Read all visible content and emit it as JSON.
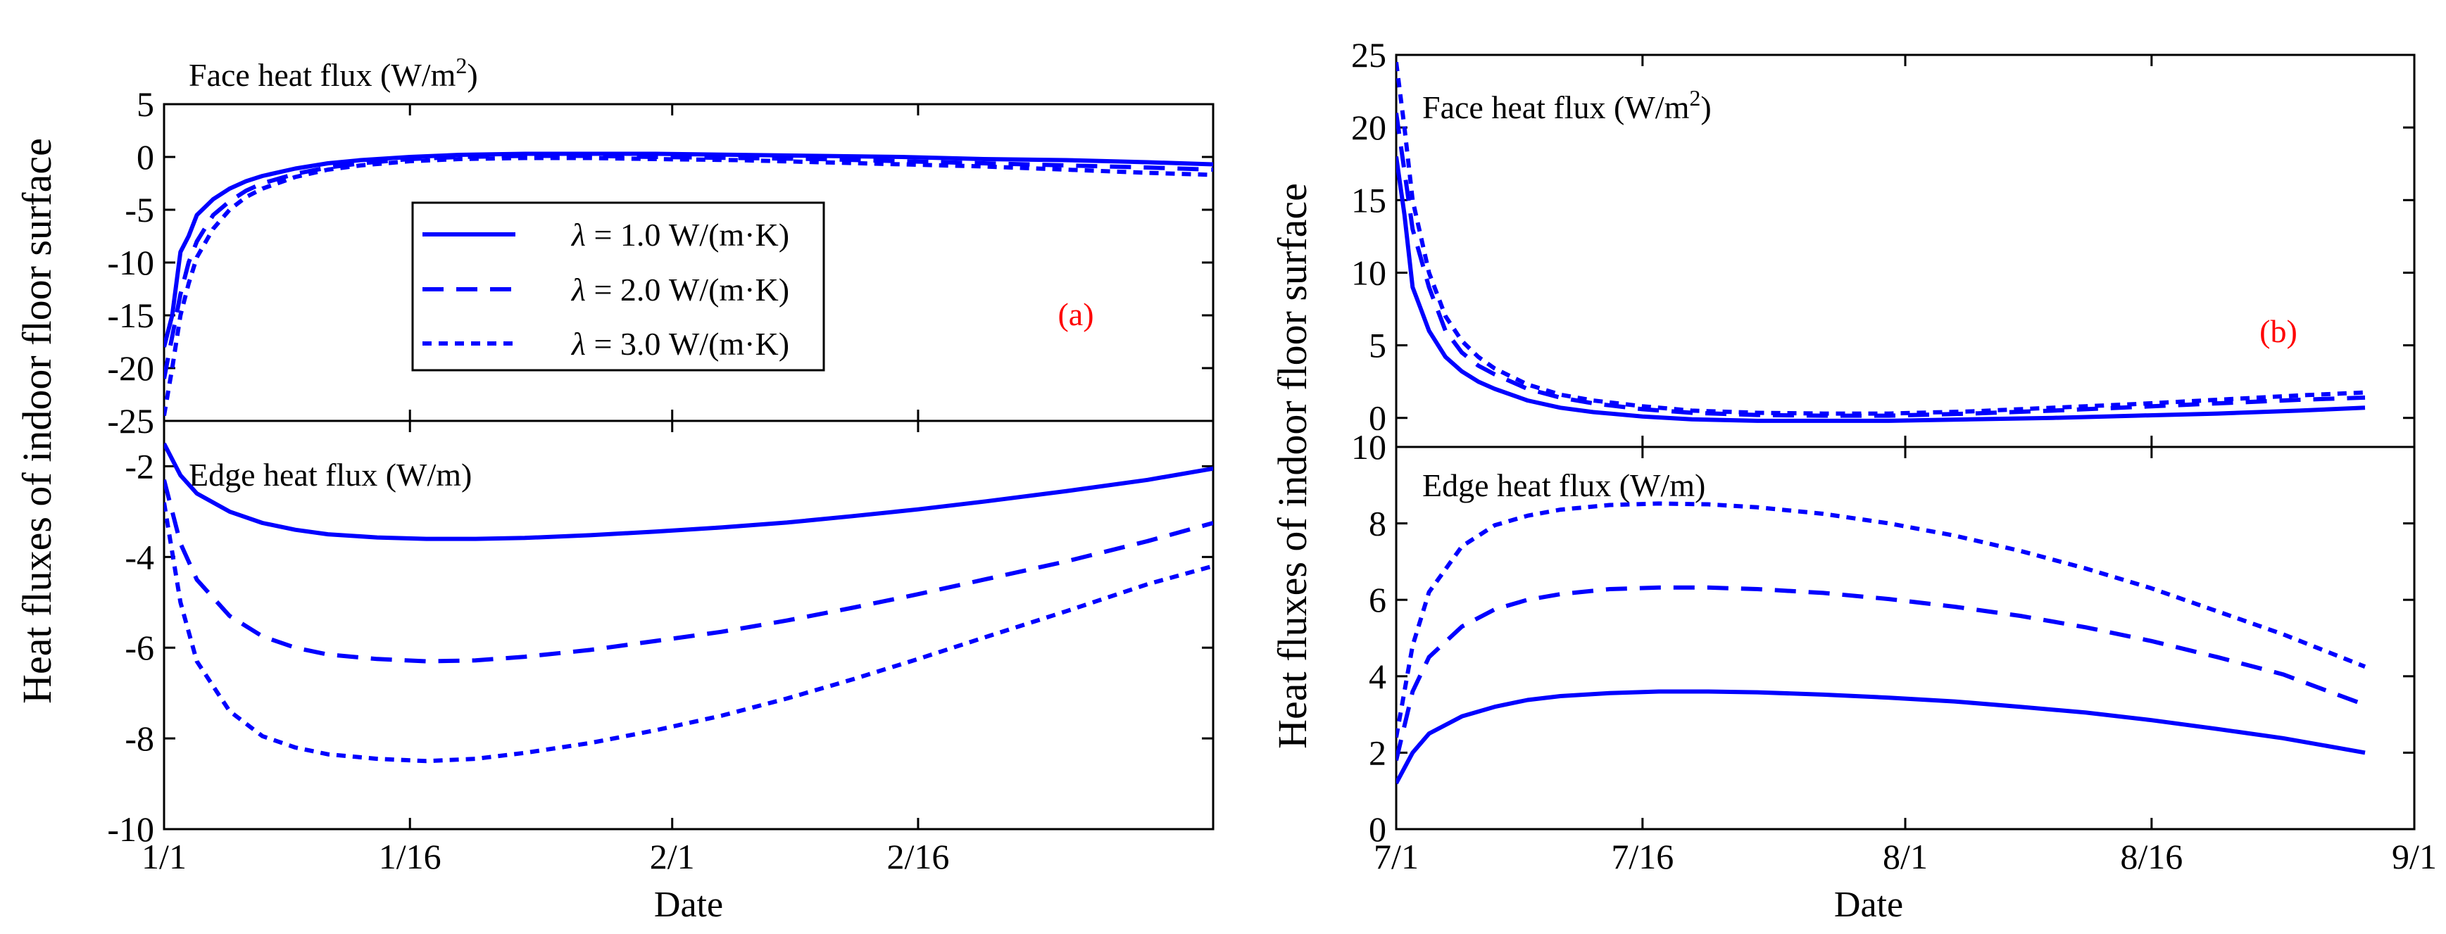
{
  "colors": {
    "series": "#0000ff",
    "annotation": "#ff0000",
    "axes": "#000000"
  },
  "figure": {
    "ylabel": "Heat fluxes of indoor floor surface"
  },
  "legend": {
    "entries": [
      {
        "symbol": "λ",
        "text": " = 1.0 W/(m·K)",
        "style": "solid"
      },
      {
        "symbol": "λ",
        "text": " = 2.0 W/(m·K)",
        "style": "dashed"
      },
      {
        "symbol": "λ",
        "text": " = 3.0 W/(m·K)",
        "style": "dotted"
      }
    ]
  },
  "chart_data": [
    {
      "id": "a",
      "tag": "(a)",
      "xlabel": "Date",
      "xticks": [
        "1/1",
        "1/16",
        "2/1",
        "2/16"
      ],
      "xlim": [
        0,
        64
      ],
      "xtick_values": [
        0,
        15,
        31,
        46
      ],
      "x_unit": "days since 1/1",
      "subplots": [
        {
          "id": "a-face",
          "type": "line",
          "title_main": "Face heat flux (W/m",
          "title_sup": "2",
          "title_end": ")",
          "ylim": [
            -25,
            5
          ],
          "yticks": [
            "5",
            "0",
            "-5",
            "-10",
            "-15",
            "-20",
            "-25"
          ],
          "ytick_values": [
            5,
            0,
            -5,
            -10,
            -15,
            -20,
            -25
          ],
          "series": [
            {
              "name": "λ = 1.0 W/(m·K)",
              "style": "solid",
              "x": [
                0,
                0.5,
                1,
                1.5,
                2,
                3,
                4,
                5,
                6,
                8,
                10,
                12,
                15,
                18,
                22,
                26,
                30,
                35,
                40,
                45,
                50,
                55,
                60,
                64
              ],
              "y": [
                -18,
                -15,
                -9,
                -7.5,
                -5.5,
                -4,
                -3,
                -2.3,
                -1.8,
                -1.1,
                -0.6,
                -0.3,
                0,
                0.2,
                0.3,
                0.3,
                0.3,
                0.2,
                0.1,
                0,
                -0.2,
                -0.3,
                -0.5,
                -0.7
              ]
            },
            {
              "name": "λ = 2.0 W/(m·K)",
              "style": "dashed",
              "x": [
                0,
                0.5,
                1,
                1.5,
                2,
                3,
                4,
                5,
                6,
                8,
                10,
                12,
                15,
                18,
                22,
                26,
                30,
                35,
                40,
                45,
                50,
                55,
                60,
                64
              ],
              "y": [
                -21,
                -17,
                -13,
                -10,
                -8,
                -5.5,
                -4.2,
                -3.2,
                -2.5,
                -1.6,
                -1,
                -0.6,
                -0.2,
                0,
                0.1,
                0.1,
                0,
                -0.1,
                -0.2,
                -0.4,
                -0.6,
                -0.8,
                -1.0,
                -1.2
              ]
            },
            {
              "name": "λ = 3.0 W/(m·K)",
              "style": "dotted",
              "x": [
                0,
                0.5,
                1,
                1.5,
                2,
                3,
                4,
                5,
                6,
                8,
                10,
                12,
                15,
                18,
                22,
                26,
                30,
                35,
                40,
                45,
                50,
                55,
                60,
                64
              ],
              "y": [
                -24.5,
                -20,
                -15,
                -12,
                -9.5,
                -6.8,
                -5,
                -3.8,
                -3,
                -1.9,
                -1.2,
                -0.8,
                -0.4,
                -0.2,
                -0.1,
                -0.1,
                -0.2,
                -0.3,
                -0.5,
                -0.7,
                -0.9,
                -1.2,
                -1.5,
                -1.7
              ]
            }
          ]
        },
        {
          "id": "a-edge",
          "type": "line",
          "title_main": "Edge heat flux (W/m)",
          "title_sup": "",
          "title_end": "",
          "ylim": [
            -10,
            -1
          ],
          "yticks": [
            "-2",
            "-4",
            "-6",
            "-8",
            "-10"
          ],
          "ytick_values": [
            -2,
            -4,
            -6,
            -8,
            -10
          ],
          "series": [
            {
              "name": "λ = 1.0 W/(m·K)",
              "style": "solid",
              "x": [
                0,
                1,
                2,
                4,
                6,
                8,
                10,
                13,
                16,
                19,
                22,
                26,
                30,
                34,
                38,
                42,
                46,
                50,
                55,
                60,
                64
              ],
              "y": [
                -1.5,
                -2.2,
                -2.6,
                -3.0,
                -3.25,
                -3.4,
                -3.5,
                -3.57,
                -3.6,
                -3.6,
                -3.58,
                -3.52,
                -3.44,
                -3.35,
                -3.24,
                -3.1,
                -2.95,
                -2.78,
                -2.55,
                -2.3,
                -2.05
              ]
            },
            {
              "name": "λ = 2.0 W/(m·K)",
              "style": "dashed",
              "x": [
                0,
                1,
                2,
                4,
                6,
                8,
                10,
                13,
                16,
                19,
                22,
                26,
                30,
                34,
                38,
                42,
                46,
                50,
                55,
                60,
                64
              ],
              "y": [
                -2.3,
                -3.7,
                -4.5,
                -5.3,
                -5.75,
                -6.0,
                -6.15,
                -6.25,
                -6.3,
                -6.28,
                -6.2,
                -6.05,
                -5.85,
                -5.65,
                -5.4,
                -5.12,
                -4.82,
                -4.5,
                -4.1,
                -3.65,
                -3.25
              ]
            },
            {
              "name": "λ = 3.0 W/(m·K)",
              "style": "dotted",
              "x": [
                0,
                1,
                2,
                4,
                6,
                8,
                10,
                13,
                16,
                19,
                22,
                26,
                30,
                34,
                38,
                42,
                46,
                50,
                55,
                60,
                64
              ],
              "y": [
                -2.8,
                -5.0,
                -6.3,
                -7.4,
                -7.95,
                -8.2,
                -8.35,
                -8.45,
                -8.5,
                -8.45,
                -8.32,
                -8.1,
                -7.82,
                -7.5,
                -7.12,
                -6.7,
                -6.25,
                -5.78,
                -5.2,
                -4.6,
                -4.2
              ]
            }
          ]
        }
      ]
    },
    {
      "id": "b",
      "tag": "(b)",
      "xlabel": "Date",
      "xticks": [
        "7/1",
        "7/16",
        "8/1",
        "8/16",
        "9/1"
      ],
      "xlim": [
        0,
        62
      ],
      "xtick_values": [
        0,
        15,
        31,
        46,
        62
      ],
      "x_unit": "days since 7/1",
      "subplots": [
        {
          "id": "b-face",
          "type": "line",
          "title_main": "Face heat flux (W/m",
          "title_sup": "2",
          "title_end": ")",
          "ylim": [
            -2,
            25
          ],
          "yticks": [
            "25",
            "20",
            "15",
            "10",
            "5",
            "0"
          ],
          "ytick_values": [
            25,
            20,
            15,
            10,
            5,
            0
          ],
          "series": [
            {
              "name": "λ = 1.0 W/(m·K)",
              "style": "solid",
              "x": [
                0,
                0.5,
                1,
                1.5,
                2,
                3,
                4,
                5,
                6,
                8,
                10,
                12,
                15,
                18,
                22,
                26,
                30,
                35,
                40,
                45,
                50,
                55,
                59
              ],
              "y": [
                18,
                14,
                9,
                7.5,
                6,
                4.2,
                3.2,
                2.5,
                2.0,
                1.2,
                0.7,
                0.4,
                0.1,
                -0.1,
                -0.2,
                -0.2,
                -0.2,
                -0.1,
                0,
                0.15,
                0.3,
                0.5,
                0.7
              ]
            },
            {
              "name": "λ = 2.0 W/(m·K)",
              "style": "dashed",
              "x": [
                0,
                0.5,
                1,
                1.5,
                2,
                3,
                4,
                5,
                6,
                8,
                10,
                12,
                15,
                18,
                22,
                26,
                30,
                35,
                40,
                45,
                50,
                55,
                59
              ],
              "y": [
                21,
                17,
                13,
                11,
                9,
                6,
                4.5,
                3.6,
                3.0,
                2.0,
                1.4,
                1.0,
                0.6,
                0.35,
                0.2,
                0.15,
                0.15,
                0.3,
                0.5,
                0.75,
                1.0,
                1.25,
                1.4
              ]
            },
            {
              "name": "λ = 3.0 W/(m·K)",
              "style": "dotted",
              "x": [
                0,
                0.5,
                1,
                1.5,
                2,
                3,
                4,
                5,
                6,
                8,
                10,
                12,
                15,
                18,
                22,
                26,
                30,
                35,
                40,
                45,
                50,
                55,
                59
              ],
              "y": [
                24.5,
                20,
                15,
                12.5,
                10,
                7,
                5.3,
                4.2,
                3.4,
                2.3,
                1.6,
                1.2,
                0.8,
                0.5,
                0.35,
                0.3,
                0.3,
                0.45,
                0.7,
                0.95,
                1.25,
                1.55,
                1.75
              ]
            }
          ]
        },
        {
          "id": "b-edge",
          "type": "line",
          "title_main": "Edge heat flux (W/m)",
          "title_sup": "",
          "title_end": "",
          "ylim": [
            0,
            10
          ],
          "yticks": [
            "10",
            "8",
            "6",
            "4",
            "2",
            "0"
          ],
          "ytick_values": [
            10,
            8,
            6,
            4,
            2,
            0
          ],
          "series": [
            {
              "name": "λ = 1.0 W/(m·K)",
              "style": "solid",
              "x": [
                0,
                1,
                2,
                4,
                6,
                8,
                10,
                13,
                16,
                19,
                22,
                26,
                30,
                34,
                38,
                42,
                46,
                50,
                54,
                59
              ],
              "y": [
                1.2,
                2.0,
                2.5,
                2.95,
                3.2,
                3.38,
                3.48,
                3.56,
                3.6,
                3.6,
                3.58,
                3.52,
                3.44,
                3.34,
                3.2,
                3.05,
                2.85,
                2.62,
                2.38,
                2.0
              ]
            },
            {
              "name": "λ = 2.0 W/(m·K)",
              "style": "dashed",
              "x": [
                0,
                1,
                2,
                4,
                6,
                8,
                10,
                13,
                16,
                19,
                22,
                26,
                30,
                34,
                38,
                42,
                46,
                50,
                54,
                59
              ],
              "y": [
                1.8,
                3.6,
                4.5,
                5.3,
                5.75,
                6.0,
                6.15,
                6.28,
                6.32,
                6.32,
                6.28,
                6.18,
                6.02,
                5.82,
                5.58,
                5.28,
                4.92,
                4.5,
                4.05,
                3.25
              ]
            },
            {
              "name": "λ = 3.0 W/(m·K)",
              "style": "dotted",
              "x": [
                0,
                1,
                2,
                4,
                6,
                8,
                10,
                13,
                16,
                19,
                22,
                26,
                30,
                34,
                38,
                42,
                46,
                50,
                54,
                59
              ],
              "y": [
                2.4,
                4.8,
                6.2,
                7.4,
                7.95,
                8.2,
                8.36,
                8.48,
                8.52,
                8.5,
                8.42,
                8.25,
                8.0,
                7.68,
                7.28,
                6.82,
                6.3,
                5.7,
                5.1,
                4.25
              ]
            }
          ]
        }
      ]
    }
  ]
}
